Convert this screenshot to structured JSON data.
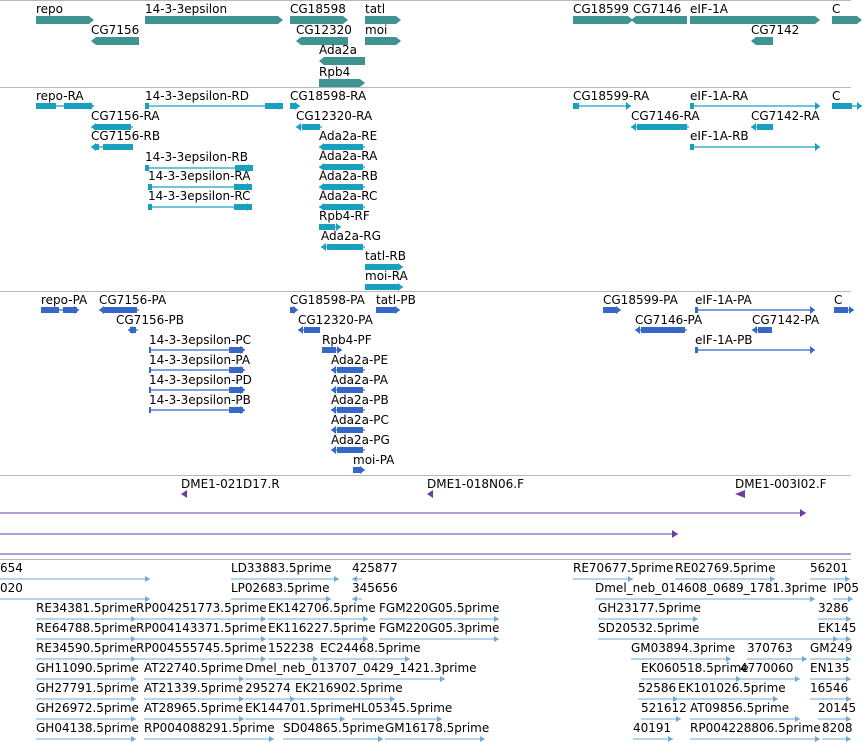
{
  "colors": {
    "gene": "#3f9390",
    "transcript": "#1aa0bf",
    "protein": "#3568c8",
    "clone": "#6b3fa0",
    "est": "#6fa9d8",
    "separator": "#b8b8b8"
  },
  "icons": {
    "forward": "right-arrow-icon",
    "reverse": "left-arrow-icon"
  },
  "tracks": {
    "genes": [
      {
        "label": "repo",
        "strand": "+"
      },
      {
        "label": "CG7156",
        "strand": "-"
      },
      {
        "label": "14-3-3epsilon",
        "strand": "+"
      },
      {
        "label": "CG18598",
        "strand": "+"
      },
      {
        "label": "CG12320",
        "strand": "-"
      },
      {
        "label": "tatl",
        "strand": "+"
      },
      {
        "label": "moi",
        "strand": "+"
      },
      {
        "label": "Ada2a",
        "strand": "-"
      },
      {
        "label": "Rpb4",
        "strand": "+"
      },
      {
        "label": "CG18599",
        "strand": "+"
      },
      {
        "label": "CG7146",
        "strand": "-"
      },
      {
        "label": "eIF-1A",
        "strand": "+"
      },
      {
        "label": "CG7142",
        "strand": "-"
      },
      {
        "label": "C",
        "strand": "+"
      }
    ],
    "transcripts": [
      {
        "label": "repo-RA"
      },
      {
        "label": "CG7156-RA"
      },
      {
        "label": "CG7156-RB"
      },
      {
        "label": "14-3-3epsilon-RD"
      },
      {
        "label": "14-3-3epsilon-RB"
      },
      {
        "label": "14-3-3epsilon-RA"
      },
      {
        "label": "14-3-3epsilon-RC"
      },
      {
        "label": "CG18598-RA"
      },
      {
        "label": "CG12320-RA"
      },
      {
        "label": "Ada2a-RE"
      },
      {
        "label": "Ada2a-RA"
      },
      {
        "label": "Ada2a-RB"
      },
      {
        "label": "Ada2a-RC"
      },
      {
        "label": "Rpb4-RF"
      },
      {
        "label": "Ada2a-RG"
      },
      {
        "label": "tatl-RB"
      },
      {
        "label": "moi-RA"
      },
      {
        "label": "CG18599-RA"
      },
      {
        "label": "CG7146-RA"
      },
      {
        "label": "eIF-1A-RA"
      },
      {
        "label": "CG7142-RA"
      },
      {
        "label": "eIF-1A-RB"
      },
      {
        "label": "C"
      }
    ],
    "proteins": [
      {
        "label": "repo-PA"
      },
      {
        "label": "CG7156-PA"
      },
      {
        "label": "CG7156-PB"
      },
      {
        "label": "14-3-3epsilon-PC"
      },
      {
        "label": "14-3-3epsilon-PA"
      },
      {
        "label": "14-3-3epsilon-PD"
      },
      {
        "label": "14-3-3epsilon-PB"
      },
      {
        "label": "CG18598-PA"
      },
      {
        "label": "tatl-PB"
      },
      {
        "label": "CG12320-PA"
      },
      {
        "label": "Rpb4-PF"
      },
      {
        "label": "Ada2a-PE"
      },
      {
        "label": "Ada2a-PA"
      },
      {
        "label": "Ada2a-PB"
      },
      {
        "label": "Ada2a-PC"
      },
      {
        "label": "Ada2a-PG"
      },
      {
        "label": "moi-PA"
      },
      {
        "label": "CG18599-PA"
      },
      {
        "label": "eIF-1A-PA"
      },
      {
        "label": "CG7146-PA"
      },
      {
        "label": "CG7142-PA"
      },
      {
        "label": "eIF-1A-PB"
      },
      {
        "label": "C"
      }
    ],
    "clones": [
      {
        "label": "DME1-021D17.R"
      },
      {
        "label": "DME1-018N06.F"
      },
      {
        "label": "DME1-003I02.F"
      }
    ],
    "ests": [
      {
        "label": "654"
      },
      {
        "label": "LD33883.5prime"
      },
      {
        "label": "425877"
      },
      {
        "label": "RE70677.5prime"
      },
      {
        "label": "RE02769.5prime"
      },
      {
        "label": "56201"
      },
      {
        "label": "020"
      },
      {
        "label": "LP02683.5prime"
      },
      {
        "label": "345656"
      },
      {
        "label": "Dmel_neb_014608_0689_1781.3prime"
      },
      {
        "label": "IP05"
      },
      {
        "label": "RE34381.5prime"
      },
      {
        "label": "RP004251773.5prime"
      },
      {
        "label": "EK142706.5prime"
      },
      {
        "label": "FGM220G05.5prime"
      },
      {
        "label": "GH23177.5prime"
      },
      {
        "label": "3286"
      },
      {
        "label": "RE64788.5prime"
      },
      {
        "label": "RP004143371.5prime"
      },
      {
        "label": "EK116227.5prime"
      },
      {
        "label": "FGM220G05.3prime"
      },
      {
        "label": "SD20532.5prime"
      },
      {
        "label": "EK145"
      },
      {
        "label": "RE34590.5prime"
      },
      {
        "label": "RP004555745.5prime"
      },
      {
        "label": "152238"
      },
      {
        "label": "EC24468.5prime"
      },
      {
        "label": "GM03894.3prime"
      },
      {
        "label": "370763"
      },
      {
        "label": "GM249"
      },
      {
        "label": "GH11090.5prime"
      },
      {
        "label": "AT22740.5prime"
      },
      {
        "label": "Dmel_neb_013707_0429_1421.3prime"
      },
      {
        "label": "EK060518.5prime"
      },
      {
        "label": "4770060"
      },
      {
        "label": "EN135"
      },
      {
        "label": "GH27791.5prime"
      },
      {
        "label": "AT21339.5prime"
      },
      {
        "label": "295274"
      },
      {
        "label": "EK216902.5prime"
      },
      {
        "label": "52586"
      },
      {
        "label": "EK101026.5prime"
      },
      {
        "label": "16546"
      },
      {
        "label": "GH26972.5prime"
      },
      {
        "label": "AT28965.5prime"
      },
      {
        "label": "EK144701.5prime"
      },
      {
        "label": "HL05345.5prime"
      },
      {
        "label": "521612"
      },
      {
        "label": "AT09856.5prime"
      },
      {
        "label": "20145"
      },
      {
        "label": "GH04138.5prime"
      },
      {
        "label": "RP004088291.5prime"
      },
      {
        "label": "SD04865.5prime"
      },
      {
        "label": "GM16178.5prime"
      },
      {
        "label": "40191"
      },
      {
        "label": "RP004228806.5prime"
      },
      {
        "label": "8208"
      }
    ]
  }
}
